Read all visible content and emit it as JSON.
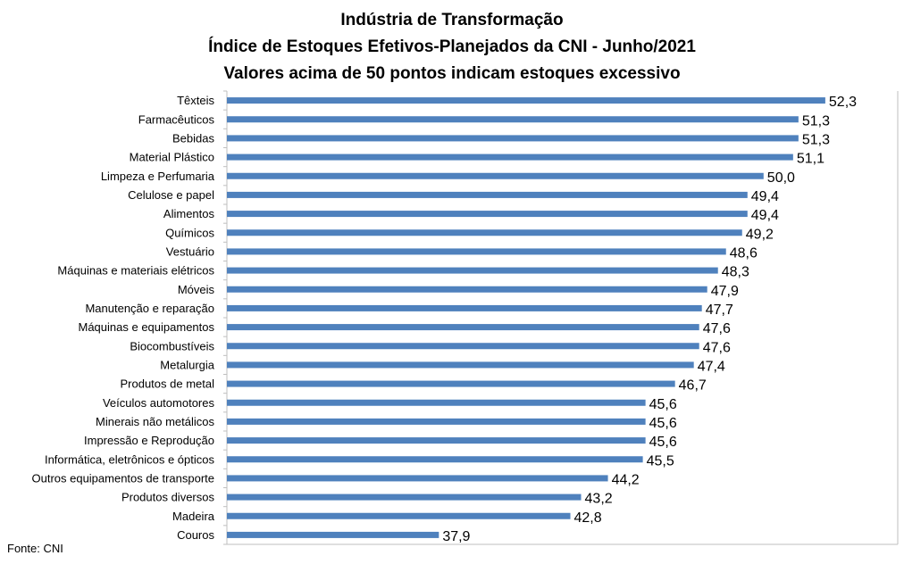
{
  "chart_data": {
    "type": "bar",
    "orientation": "horizontal",
    "title": [
      "Indústria de Transformação",
      "Índice de Estoques Efetivos-Planejados da CNI - Junho/2021",
      "Valores acima de 50 pontos indicam estoques excessivo"
    ],
    "categories": [
      "Têxteis",
      "Farmacêuticos",
      "Bebidas",
      "Material Plástico",
      "Limpeza e Perfumaria",
      "Celulose e papel",
      "Alimentos",
      "Químicos",
      "Vestuário",
      "Máquinas e materiais elétricos",
      "Móveis",
      "Manutenção e reparação",
      "Máquinas e equipamentos",
      "Biocombustíveis",
      "Metalurgia",
      "Produtos de metal",
      "Veículos automotores",
      "Minerais não metálicos",
      "Impressão e Reprodução",
      "Informática, eletrônicos e ópticos",
      "Outros equipamentos de transporte",
      "Produtos diversos",
      "Madeira",
      "Couros"
    ],
    "values": [
      52.3,
      51.3,
      51.3,
      51.1,
      50.0,
      49.4,
      49.4,
      49.2,
      48.6,
      48.3,
      47.9,
      47.7,
      47.6,
      47.6,
      47.4,
      46.7,
      45.6,
      45.6,
      45.6,
      45.5,
      44.2,
      43.2,
      42.8,
      37.9
    ],
    "data_labels": [
      "52,3",
      "51,3",
      "51,3",
      "51,1",
      "50,0",
      "49,4",
      "49,4",
      "49,2",
      "48,6",
      "48,3",
      "47,9",
      "47,7",
      "47,6",
      "47,6",
      "47,4",
      "46,7",
      "45,6",
      "45,6",
      "45,6",
      "45,5",
      "44,2",
      "43,2",
      "42,8",
      "37,9"
    ],
    "xlim": [
      30,
      55
    ],
    "bar_color": "#4f81bd",
    "grid": false,
    "legend": "none"
  },
  "source": "Fonte: CNI"
}
